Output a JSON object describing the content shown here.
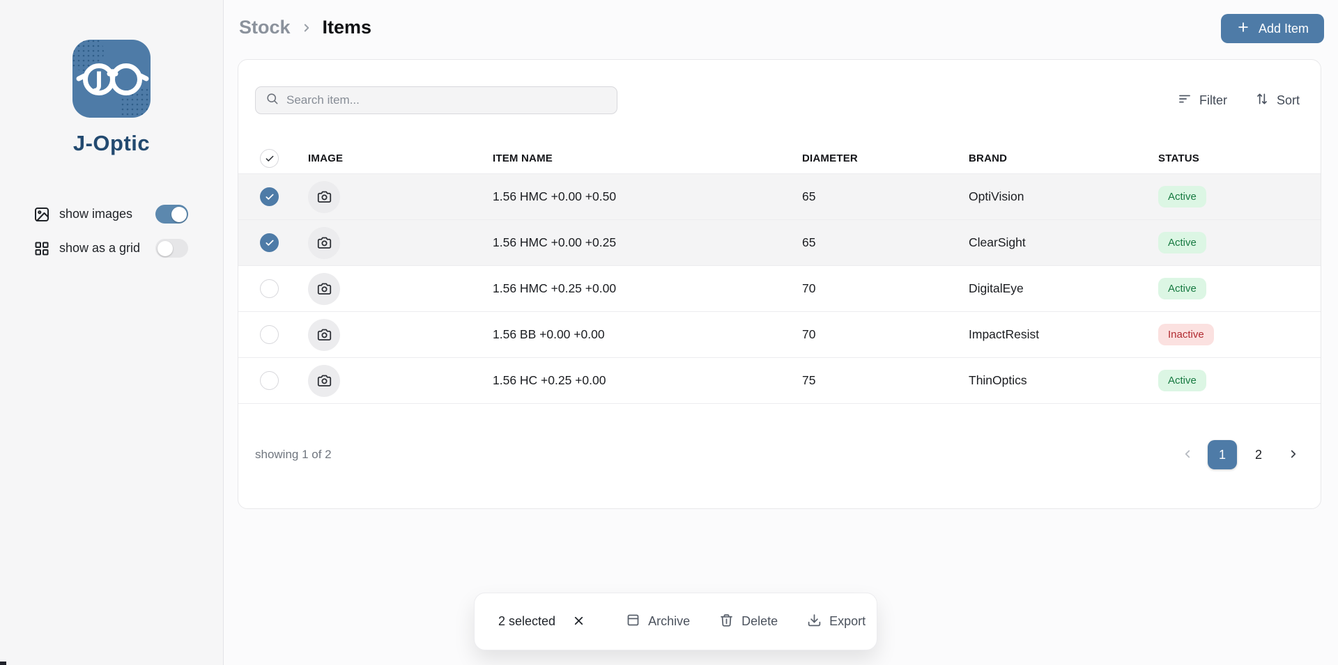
{
  "brand": {
    "name": "J-Optic"
  },
  "sidebar": {
    "toggles": [
      {
        "label": "show images",
        "icon": "image-icon",
        "on": true
      },
      {
        "label": "show as a grid",
        "icon": "grid-icon",
        "on": false
      }
    ]
  },
  "header": {
    "breadcrumb": [
      "Stock",
      "Items"
    ],
    "add_item_label": "Add Item"
  },
  "toolbar": {
    "search_placeholder": "Search item...",
    "filter_label": "Filter",
    "sort_label": "Sort"
  },
  "table": {
    "columns": [
      "IMAGE",
      "ITEM NAME",
      "DIAMETER",
      "BRAND",
      "STATUS"
    ],
    "rows": [
      {
        "selected": true,
        "name": "1.56 HMC +0.00 +0.50",
        "diameter": "65",
        "brand": "OptiVision",
        "status": "Active"
      },
      {
        "selected": true,
        "name": "1.56 HMC +0.00 +0.25",
        "diameter": "65",
        "brand": "ClearSight",
        "status": "Active"
      },
      {
        "selected": false,
        "name": "1.56 HMC +0.25 +0.00",
        "diameter": "70",
        "brand": "DigitalEye",
        "status": "Active"
      },
      {
        "selected": false,
        "name": "1.56 BB +0.00 +0.00",
        "diameter": "70",
        "brand": "ImpactResist",
        "status": "Inactive"
      },
      {
        "selected": false,
        "name": "1.56 HC +0.25 +0.00",
        "diameter": "75",
        "brand": "ThinOptics",
        "status": "Active"
      }
    ]
  },
  "pagination": {
    "summary": "showing 1 of 2",
    "pages": [
      "1",
      "2"
    ],
    "active_page": "1"
  },
  "selection_bar": {
    "selected_label": "2 selected",
    "actions": [
      "Archive",
      "Delete",
      "Export"
    ]
  },
  "colors": {
    "accent": "#4e7ba7",
    "brand_text": "#234a70",
    "active_badge_bg": "#dcf6e4",
    "active_badge_text": "#177a41",
    "inactive_badge_bg": "#fbe1e0",
    "inactive_badge_text": "#b12b31"
  }
}
